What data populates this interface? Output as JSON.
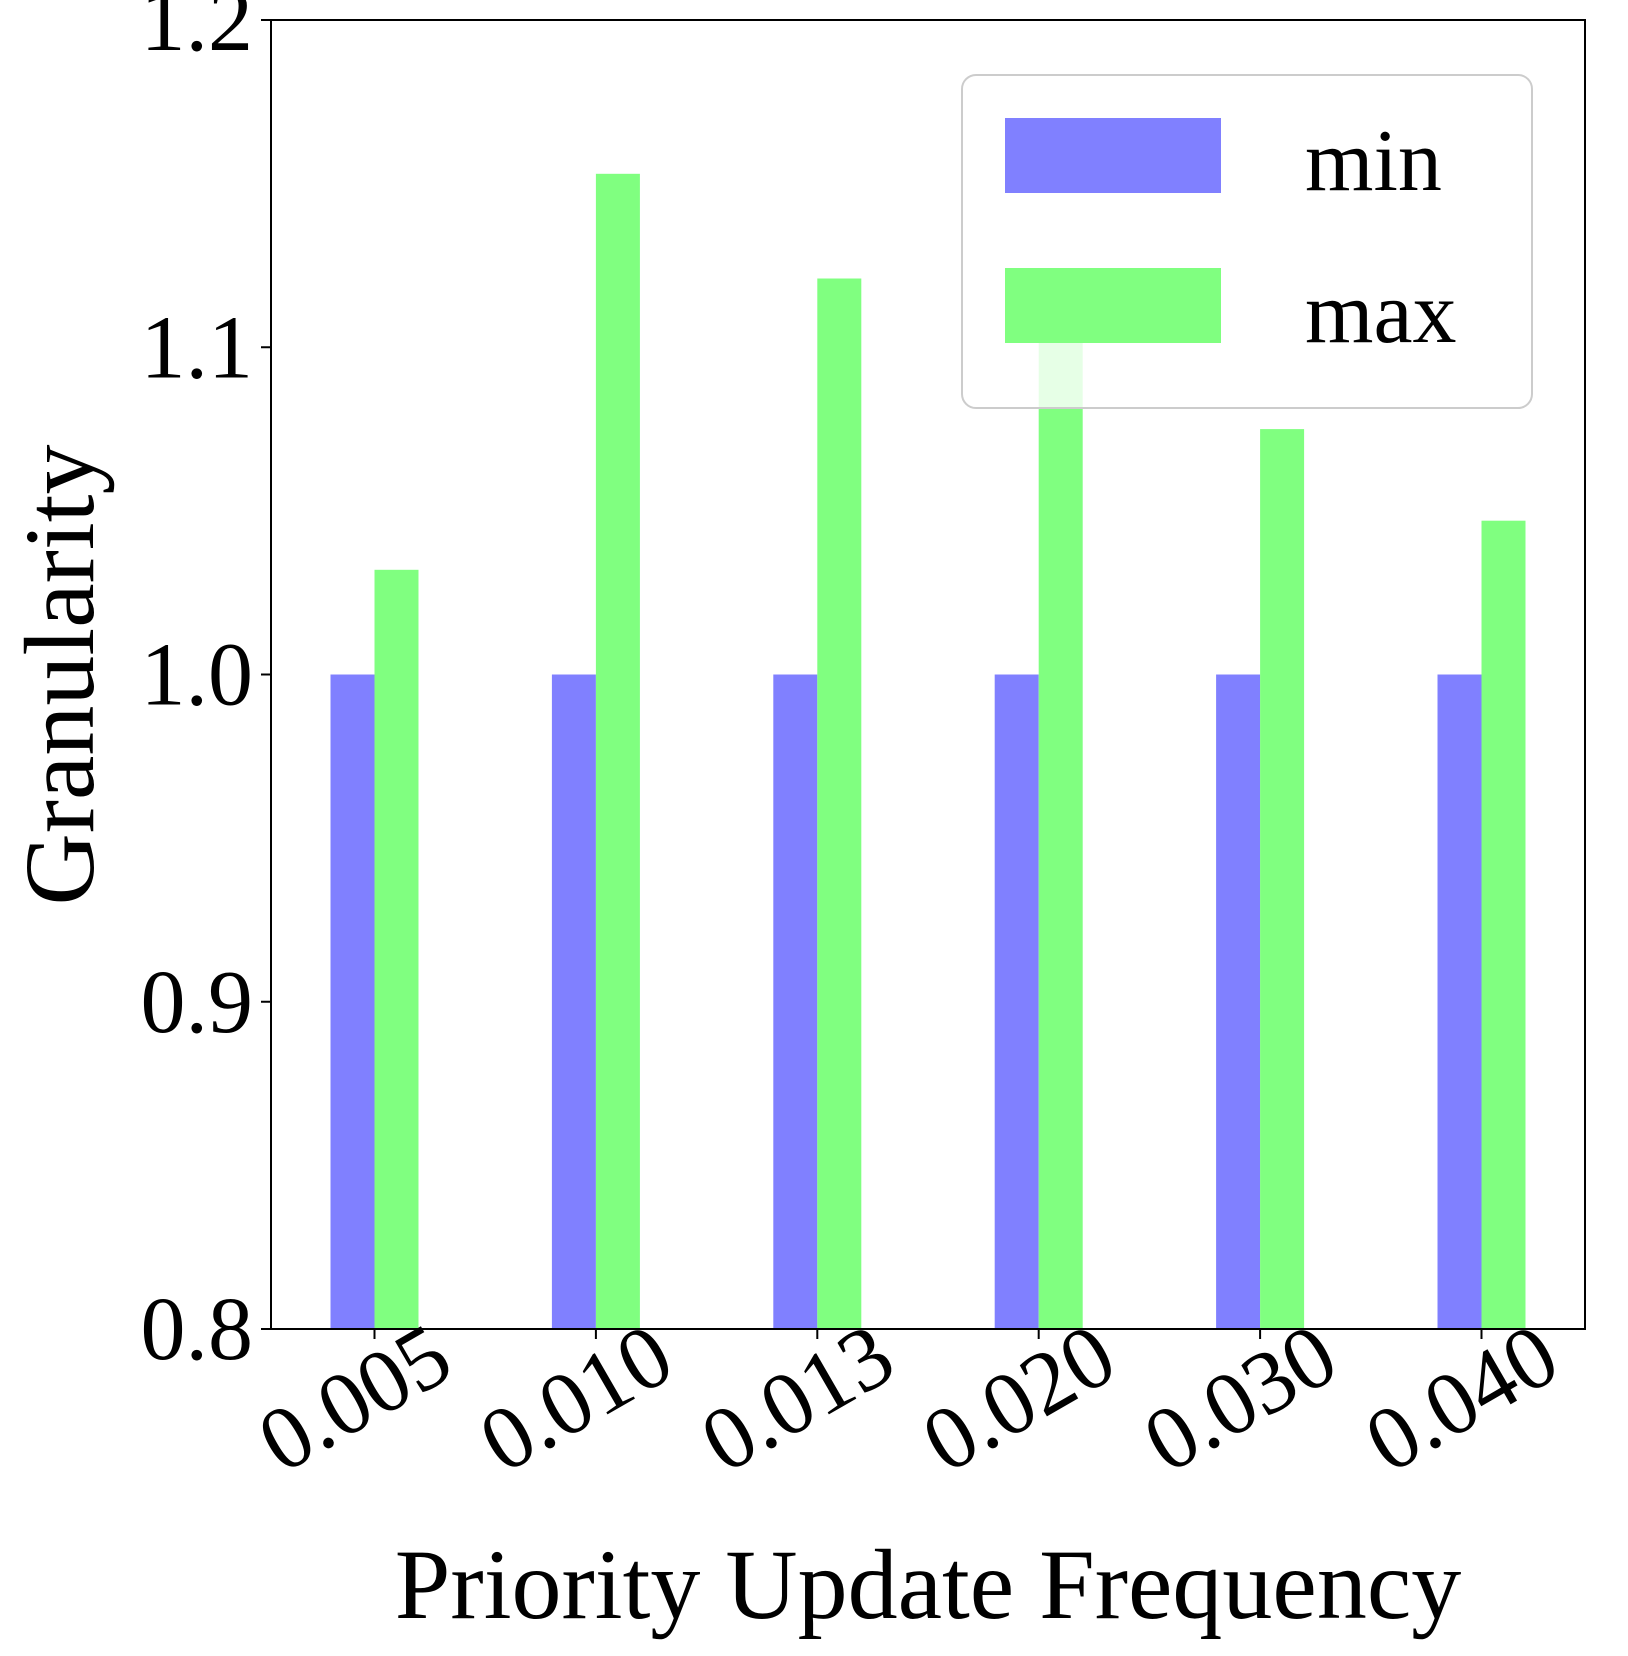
{
  "chart_data": {
    "type": "bar",
    "title": "",
    "xlabel": "Priority Update Frequency",
    "ylabel": "Granularity",
    "categories": [
      "0.005",
      "0.010",
      "0.013",
      "0.020",
      "0.030",
      "0.040"
    ],
    "series": [
      {
        "name": "min",
        "color": "#8080ff",
        "values": [
          1.0,
          1.0,
          1.0,
          1.0,
          1.0,
          1.0
        ]
      },
      {
        "name": "max",
        "color": "#80ff80",
        "values": [
          1.032,
          1.153,
          1.121,
          1.108,
          1.075,
          1.047
        ]
      }
    ],
    "ylim": [
      0.8,
      1.2
    ],
    "yticks": [
      "0.8",
      "0.9",
      "1.0",
      "1.1",
      "1.2"
    ],
    "grid": false,
    "legend_position": "top-right"
  }
}
